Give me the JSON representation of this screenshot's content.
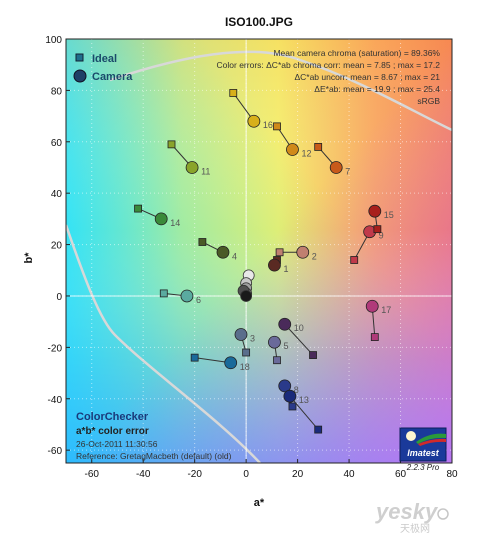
{
  "chart_data": {
    "type": "scatter",
    "title": "ISO100.JPG",
    "xlabel": "a*",
    "ylabel": "b*",
    "xlim": [
      -70,
      80
    ],
    "ylim": [
      -65,
      100
    ],
    "xticks": [
      -60,
      -40,
      -20,
      0,
      20,
      40,
      60,
      80
    ],
    "yticks": [
      -60,
      -40,
      -20,
      0,
      20,
      40,
      60,
      80,
      100
    ],
    "grid": true,
    "legend": {
      "placement": "top-left",
      "entries": [
        {
          "label": "Ideal",
          "marker": "square",
          "color": "#1f6e8c"
        },
        {
          "label": "Camera",
          "marker": "circle",
          "color": "#1e3f66"
        }
      ]
    },
    "stats": [
      "Mean camera chroma (saturation) = 89.36%",
      "Color errors: ΔC*ab chroma corr:  mean = 7.85 ;  max = 17.2",
      "ΔC*ab uncorr:  mean = 8.67 ;  max = 21",
      "ΔE*ab:  mean = 19.9 ;  max = 25.4",
      "sRGB"
    ],
    "info": [
      "ColorChecker",
      "a*b* color error",
      "26-Oct-2011 11:30:56",
      "Reference: GretagMacbeth (default) (old)"
    ],
    "logo": {
      "brand": "Imatest",
      "version": "2.2.3  Pro"
    },
    "patches": [
      {
        "id": "1",
        "ideal": [
          12,
          14
        ],
        "camera": [
          11,
          12
        ],
        "color": "#5a2a22"
      },
      {
        "id": "2",
        "ideal": [
          13,
          17
        ],
        "camera": [
          22,
          17
        ],
        "color": "#c08070"
      },
      {
        "id": "3",
        "ideal": [
          0,
          -22
        ],
        "camera": [
          -2,
          -15
        ],
        "color": "#5a6e8c"
      },
      {
        "id": "4",
        "ideal": [
          -17,
          21
        ],
        "camera": [
          -9,
          17
        ],
        "color": "#4a5a26"
      },
      {
        "id": "5",
        "ideal": [
          12,
          -25
        ],
        "camera": [
          11,
          -18
        ],
        "color": "#6a6a9a"
      },
      {
        "id": "6",
        "ideal": [
          -32,
          1
        ],
        "camera": [
          -23,
          0
        ],
        "color": "#5aaaa0"
      },
      {
        "id": "7",
        "ideal": [
          28,
          58
        ],
        "camera": [
          35,
          50
        ],
        "color": "#c85a1a"
      },
      {
        "id": "8",
        "ideal": [
          18,
          -43
        ],
        "camera": [
          15,
          -35
        ],
        "color": "#2a3a8a"
      },
      {
        "id": "9",
        "ideal": [
          42,
          14
        ],
        "camera": [
          48,
          25
        ],
        "color": "#c03a4a"
      },
      {
        "id": "10",
        "ideal": [
          26,
          -23
        ],
        "camera": [
          15,
          -11
        ],
        "color": "#4a2a5a"
      },
      {
        "id": "11",
        "ideal": [
          -29,
          59
        ],
        "camera": [
          -21,
          50
        ],
        "color": "#8aa42a"
      },
      {
        "id": "12",
        "ideal": [
          12,
          66
        ],
        "camera": [
          18,
          57
        ],
        "color": "#d08a1a"
      },
      {
        "id": "13",
        "ideal": [
          28,
          -52
        ],
        "camera": [
          17,
          -39
        ],
        "color": "#1a2a7a"
      },
      {
        "id": "14",
        "ideal": [
          -42,
          34
        ],
        "camera": [
          -33,
          30
        ],
        "color": "#3a8a3a"
      },
      {
        "id": "15",
        "ideal": [
          51,
          26
        ],
        "camera": [
          50,
          33
        ],
        "color": "#a8201c"
      },
      {
        "id": "16",
        "ideal": [
          -5,
          79
        ],
        "camera": [
          3,
          68
        ],
        "color": "#d8b01a"
      },
      {
        "id": "17",
        "ideal": [
          50,
          -16
        ],
        "camera": [
          49,
          -4
        ],
        "color": "#b03a7a"
      },
      {
        "id": "18",
        "ideal": [
          -20,
          -24
        ],
        "camera": [
          -6,
          -26
        ],
        "color": "#1a6a9a"
      }
    ],
    "neutral_camera": [
      {
        "xy": [
          1,
          8
        ],
        "color": "#e8e8e8"
      },
      {
        "xy": [
          0,
          5
        ],
        "color": "#c8c8c8"
      },
      {
        "xy": [
          0,
          3
        ],
        "color": "#a0a0a0"
      },
      {
        "xy": [
          0,
          1
        ],
        "color": "#707070"
      },
      {
        "xy": [
          -1,
          2
        ],
        "color": "#505050"
      },
      {
        "xy": [
          0,
          0
        ],
        "color": "#1a1a1a"
      }
    ]
  },
  "watermark": {
    "main": "yesky",
    "sub": "天极网"
  }
}
